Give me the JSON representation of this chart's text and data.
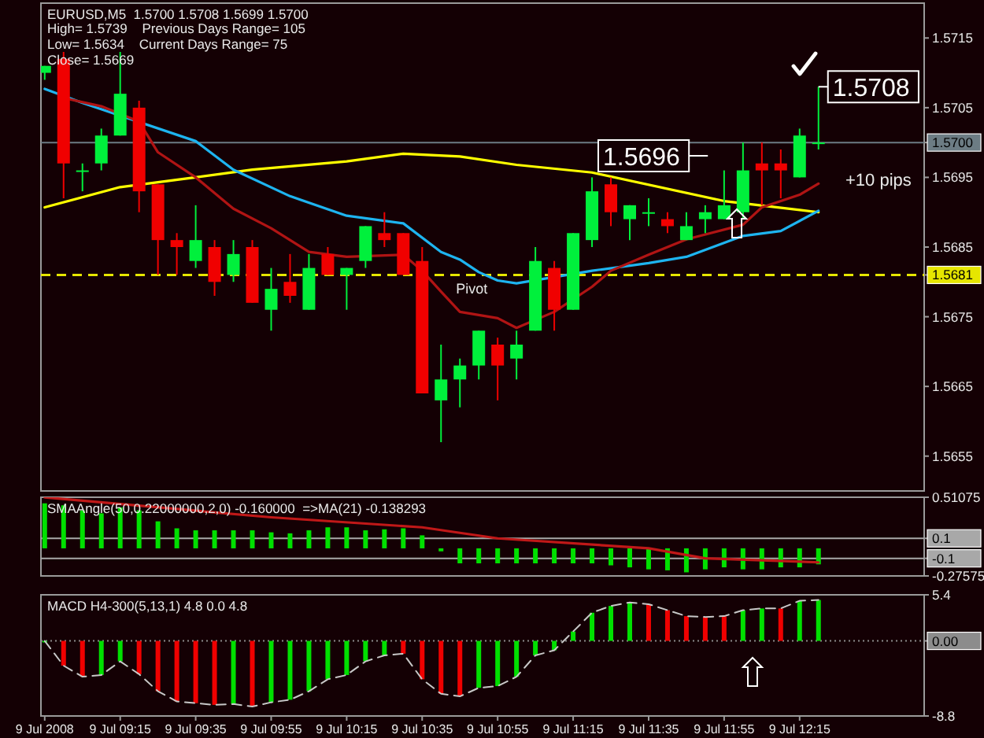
{
  "chart_data": [
    {
      "type": "candlestick",
      "title": "EURUSD,M5  1.5700 1.5708 1.5699 1.5700",
      "annotations": [
        "High= 1.5739    Previous Days Range= 105",
        "Low= 1.5634    Current Days Range= 75",
        "Close= 1.5669",
        "+10 pips",
        "1.5696",
        {
          "text": "1.5708",
          "x": "2008-07-09T12:20",
          "y": 1.5708
        }
      ],
      "x": [
        "2008-07-09T08:55",
        "2008-07-09T09:00",
        "2008-07-09T09:05",
        "2008-07-09T09:10",
        "2008-07-09T09:15",
        "2008-07-09T09:20",
        "2008-07-09T09:25",
        "2008-07-09T09:30",
        "2008-07-09T09:35",
        "2008-07-09T09:40",
        "2008-07-09T09:45",
        "2008-07-09T09:50",
        "2008-07-09T09:55",
        "2008-07-09T10:00",
        "2008-07-09T10:05",
        "2008-07-09T10:10",
        "2008-07-09T10:15",
        "2008-07-09T10:20",
        "2008-07-09T10:25",
        "2008-07-09T10:30",
        "2008-07-09T10:35",
        "2008-07-09T10:40",
        "2008-07-09T10:45",
        "2008-07-09T10:50",
        "2008-07-09T10:55",
        "2008-07-09T11:00",
        "2008-07-09T11:05",
        "2008-07-09T11:10",
        "2008-07-09T11:15",
        "2008-07-09T11:20",
        "2008-07-09T11:25",
        "2008-07-09T11:30",
        "2008-07-09T11:35",
        "2008-07-09T11:40",
        "2008-07-09T11:45",
        "2008-07-09T11:50",
        "2008-07-09T11:55",
        "2008-07-09T12:00",
        "2008-07-09T12:05",
        "2008-07-09T12:10",
        "2008-07-09T12:15",
        "2008-07-09T12:20"
      ],
      "xlim": [
        "2008-07-09T08:54",
        "2008-07-09T12:48"
      ],
      "ylim": [
        1.565,
        1.572
      ],
      "yticks": [
        1.5715,
        1.5705,
        1.5695,
        1.5685,
        1.5675,
        1.5665,
        1.5655,
        {
          "value": 1.57,
          "label": "1.5700"
        },
        {
          "value": 1.5681,
          "label": "1.5681"
        }
      ],
      "tick_labels": "y",
      "ohlc": [
        [
          1.571,
          1.5711,
          1.5709,
          1.5711
        ],
        [
          1.5712,
          1.5713,
          1.5692,
          1.5697
        ],
        [
          1.5696,
          1.5697,
          1.5693,
          1.5696
        ],
        [
          1.5697,
          1.5702,
          1.5696,
          1.5701
        ],
        [
          1.5701,
          1.5713,
          1.5701,
          1.5707
        ],
        [
          1.5705,
          1.5706,
          1.569,
          1.5693
        ],
        [
          1.5694,
          1.5694,
          1.5681,
          1.5686
        ],
        [
          1.5686,
          1.5687,
          1.5681,
          1.5685
        ],
        [
          1.5683,
          1.5691,
          1.5682,
          1.5686
        ],
        [
          1.5685,
          1.5686,
          1.5678,
          1.568
        ],
        [
          1.5681,
          1.5686,
          1.568,
          1.5684
        ],
        [
          1.5685,
          1.5686,
          1.5677,
          1.5677
        ],
        [
          1.5676,
          1.5682,
          1.5673,
          1.5679
        ],
        [
          1.568,
          1.5684,
          1.5677,
          1.5678
        ],
        [
          1.5676,
          1.5684,
          1.5676,
          1.5682
        ],
        [
          1.5684,
          1.5685,
          1.5681,
          1.5681
        ],
        [
          1.5681,
          1.5682,
          1.5676,
          1.5682
        ],
        [
          1.5683,
          1.5688,
          1.5682,
          1.5688
        ],
        [
          1.5687,
          1.569,
          1.5685,
          1.5686
        ],
        [
          1.5687,
          1.5687,
          1.5681,
          1.5681
        ],
        [
          1.5683,
          1.5685,
          1.5664,
          1.5664
        ],
        [
          1.5663,
          1.5671,
          1.5657,
          1.5666
        ],
        [
          1.5666,
          1.5669,
          1.5662,
          1.5668
        ],
        [
          1.5668,
          1.5673,
          1.5666,
          1.5673
        ],
        [
          1.5671,
          1.5672,
          1.5663,
          1.5668
        ],
        [
          1.5669,
          1.5673,
          1.5666,
          1.5671
        ],
        [
          1.5673,
          1.5685,
          1.5673,
          1.5683
        ],
        [
          1.5682,
          1.5683,
          1.5673,
          1.5676
        ],
        [
          1.5676,
          1.5687,
          1.5676,
          1.5687
        ],
        [
          1.5686,
          1.5695,
          1.5685,
          1.5693
        ],
        [
          1.5694,
          1.5695,
          1.5688,
          1.569
        ],
        [
          1.5689,
          1.5691,
          1.5686,
          1.5691
        ],
        [
          1.569,
          1.5692,
          1.5688,
          1.569
        ],
        [
          1.5689,
          1.569,
          1.5687,
          1.5688
        ],
        [
          1.5686,
          1.569,
          1.5686,
          1.5688
        ],
        [
          1.5689,
          1.5691,
          1.5687,
          1.569
        ],
        [
          1.5689,
          1.5696,
          1.5689,
          1.5691
        ],
        [
          1.569,
          1.57,
          1.5689,
          1.5696
        ],
        [
          1.5697,
          1.57,
          1.5691,
          1.5696
        ],
        [
          1.5697,
          1.5699,
          1.5692,
          1.5696
        ],
        [
          1.5695,
          1.5702,
          1.5695,
          1.5701
        ],
        [
          1.57,
          1.5708,
          1.5699,
          1.57
        ]
      ],
      "colors": [
        "#00f03c",
        "#f00000",
        "#00f03c",
        "#00f03c",
        "#00f03c",
        "#f00000",
        "#f00000",
        "#f00000",
        "#00f03c",
        "#f00000",
        "#00f03c",
        "#f00000",
        "#00f03c",
        "#f00000",
        "#00f03c",
        "#f00000",
        "#00f03c",
        "#00f03c",
        "#f00000",
        "#f00000",
        "#f00000",
        "#00f03c",
        "#00f03c",
        "#00f03c",
        "#f00000",
        "#00f03c",
        "#00f03c",
        "#f00000",
        "#00f03c",
        "#00f03c",
        "#f00000",
        "#00f03c",
        "#00f03c",
        "#f00000",
        "#00f03c",
        "#00f03c",
        "#00f03c",
        "#00f03c",
        "#f00000",
        "#f00000",
        "#00f03c",
        "#00f03c"
      ],
      "series": [
        {
          "type": "line",
          "color": "#ffff00",
          "x": [
            "2008-07-09T08:55",
            "2008-07-09T09:15",
            "2008-07-09T09:35",
            "2008-07-09T09:50",
            "2008-07-09T10:15",
            "2008-07-09T10:30",
            "2008-07-09T10:45",
            "2008-07-09T11:00",
            "2008-07-09T11:20",
            "2008-07-09T11:55",
            "2008-07-09T12:20"
          ],
          "values": [
            1.56907,
            1.56936,
            1.5695,
            1.56961,
            1.56973,
            1.56984,
            1.5698,
            1.56968,
            1.56957,
            1.56916,
            1.569
          ]
        },
        {
          "type": "line",
          "color": "#1eb4f0",
          "x": [
            "2008-07-09T08:55",
            "2008-07-09T09:05",
            "2008-07-09T09:35",
            "2008-07-09T09:45",
            "2008-07-09T10:00",
            "2008-07-09T10:15",
            "2008-07-09T10:30",
            "2008-07-09T10:40",
            "2008-07-09T10:45",
            "2008-07-09T10:50",
            "2008-07-09T10:55",
            "2008-07-09T11:00",
            "2008-07-09T11:20",
            "2008-07-09T11:35",
            "2008-07-09T11:45",
            "2008-07-09T12:00",
            "2008-07-09T12:10",
            "2008-07-09T12:20"
          ],
          "values": [
            1.57077,
            1.57057,
            1.57002,
            1.56961,
            1.56923,
            1.56895,
            1.56884,
            1.56843,
            1.56832,
            1.56814,
            1.56802,
            1.56798,
            1.56816,
            1.56827,
            1.56836,
            1.56866,
            1.56873,
            1.56902
          ]
        },
        {
          "type": "line",
          "color": "#b01414",
          "x": [
            "2008-07-09T09:00",
            "2008-07-09T09:10",
            "2008-07-09T09:20",
            "2008-07-09T09:25",
            "2008-07-09T09:35",
            "2008-07-09T09:45",
            "2008-07-09T09:55",
            "2008-07-09T10:05",
            "2008-07-09T10:15",
            "2008-07-09T10:30",
            "2008-07-09T10:35",
            "2008-07-09T10:40",
            "2008-07-09T10:45",
            "2008-07-09T10:55",
            "2008-07-09T11:00",
            "2008-07-09T11:10",
            "2008-07-09T11:20",
            "2008-07-09T11:25",
            "2008-07-09T11:35",
            "2008-07-09T11:45",
            "2008-07-09T12:00",
            "2008-07-09T12:05",
            "2008-07-09T12:15",
            "2008-07-09T12:20"
          ],
          "values": [
            1.57064,
            1.57052,
            1.5703,
            1.56986,
            1.5695,
            1.56905,
            1.56877,
            1.56843,
            1.56836,
            1.56839,
            1.56816,
            1.56786,
            1.56757,
            1.56748,
            1.56734,
            1.56757,
            1.56793,
            1.56816,
            1.56839,
            1.56861,
            1.56882,
            1.56907,
            1.56925,
            1.56941
          ]
        }
      ],
      "ref_lines": [
        {
          "axis": "y",
          "value": 1.5681,
          "label": "Pivot",
          "color": "#e6e600",
          "line_style": "dashed"
        },
        {
          "axis": "y",
          "value": 1.57,
          "color": "#6c7c84",
          "line_style": "solid"
        }
      ]
    },
    {
      "type": "bar",
      "title": "SMAAngle(50,0.22000000,2,0) -0.160000  =>MA(21) -0.138293",
      "x": [
        "2008-07-09T08:55",
        "2008-07-09T09:00",
        "2008-07-09T09:05",
        "2008-07-09T09:10",
        "2008-07-09T09:15",
        "2008-07-09T09:20",
        "2008-07-09T09:25",
        "2008-07-09T09:30",
        "2008-07-09T09:35",
        "2008-07-09T09:40",
        "2008-07-09T09:45",
        "2008-07-09T09:50",
        "2008-07-09T09:55",
        "2008-07-09T10:00",
        "2008-07-09T10:05",
        "2008-07-09T10:10",
        "2008-07-09T10:15",
        "2008-07-09T10:20",
        "2008-07-09T10:25",
        "2008-07-09T10:30",
        "2008-07-09T10:35",
        "2008-07-09T10:40",
        "2008-07-09T10:45",
        "2008-07-09T10:50",
        "2008-07-09T10:55",
        "2008-07-09T11:00",
        "2008-07-09T11:05",
        "2008-07-09T11:10",
        "2008-07-09T11:15",
        "2008-07-09T11:20",
        "2008-07-09T11:25",
        "2008-07-09T11:30",
        "2008-07-09T11:35",
        "2008-07-09T11:40",
        "2008-07-09T11:45",
        "2008-07-09T11:50",
        "2008-07-09T11:55",
        "2008-07-09T12:00",
        "2008-07-09T12:05",
        "2008-07-09T12:10",
        "2008-07-09T12:15",
        "2008-07-09T12:20"
      ],
      "xlim": [
        "2008-07-09T08:54",
        "2008-07-09T12:48"
      ],
      "ylim": [
        -0.27575,
        0.51075
      ],
      "yticks": [
        0.51075,
        0.1,
        -0.1,
        -0.27575
      ],
      "tick_labels": "y",
      "series": [
        {
          "type": "bar",
          "color": "#00e000",
          "values": [
            0.45,
            0.43,
            0.38,
            0.35,
            0.41,
            0.38,
            0.27,
            0.2,
            0.18,
            0.18,
            0.18,
            0.18,
            0.16,
            0.15,
            0.18,
            0.21,
            0.21,
            0.18,
            0.19,
            0.2,
            0.13,
            -0.03,
            -0.15,
            -0.15,
            -0.15,
            -0.15,
            -0.15,
            -0.15,
            -0.15,
            -0.15,
            -0.17,
            -0.19,
            -0.21,
            -0.22,
            -0.24,
            -0.21,
            -0.19,
            -0.21,
            -0.21,
            -0.19,
            -0.19,
            -0.16
          ]
        },
        {
          "type": "line",
          "color": "#c01818",
          "x": [
            "2008-07-09T08:55",
            "2008-07-09T09:55",
            "2008-07-09T10:35",
            "2008-07-09T10:55",
            "2008-07-09T11:35",
            "2008-07-09T11:50",
            "2008-07-09T12:20"
          ],
          "values": [
            0.51,
            0.31,
            0.21,
            0.1,
            0.0,
            -0.1,
            -0.14
          ]
        }
      ],
      "ref_lines": [
        {
          "axis": "y",
          "value": 0.1,
          "color": "#a8a8a8",
          "line_style": "solid"
        },
        {
          "axis": "y",
          "value": -0.1,
          "color": "#a8a8a8",
          "line_style": "solid"
        }
      ]
    },
    {
      "type": "bar",
      "title": "MACD H4-300(5,13,1) 4.8 0.0 4.8",
      "x": [
        "2008-07-09T08:55",
        "2008-07-09T09:00",
        "2008-07-09T09:05",
        "2008-07-09T09:10",
        "2008-07-09T09:15",
        "2008-07-09T09:20",
        "2008-07-09T09:25",
        "2008-07-09T09:30",
        "2008-07-09T09:35",
        "2008-07-09T09:40",
        "2008-07-09T09:45",
        "2008-07-09T09:50",
        "2008-07-09T09:55",
        "2008-07-09T10:00",
        "2008-07-09T10:05",
        "2008-07-09T10:10",
        "2008-07-09T10:15",
        "2008-07-09T10:20",
        "2008-07-09T10:25",
        "2008-07-09T10:30",
        "2008-07-09T10:35",
        "2008-07-09T10:40",
        "2008-07-09T10:45",
        "2008-07-09T10:50",
        "2008-07-09T10:55",
        "2008-07-09T11:00",
        "2008-07-09T11:05",
        "2008-07-09T11:10",
        "2008-07-09T11:15",
        "2008-07-09T11:20",
        "2008-07-09T11:25",
        "2008-07-09T11:30",
        "2008-07-09T11:35",
        "2008-07-09T11:40",
        "2008-07-09T11:45",
        "2008-07-09T11:50",
        "2008-07-09T11:55",
        "2008-07-09T12:00",
        "2008-07-09T12:05",
        "2008-07-09T12:10",
        "2008-07-09T12:15",
        "2008-07-09T12:20"
      ],
      "xlim": [
        "2008-07-09T08:54",
        "2008-07-09T12:48"
      ],
      "xticks": [
        {
          "value": "2008-07-09T08:55",
          "label": "9 Jul 2008"
        },
        {
          "value": "2008-07-09T09:15",
          "label": "9 Jul 09:15"
        },
        {
          "value": "2008-07-09T09:35",
          "label": "9 Jul 09:35"
        },
        {
          "value": "2008-07-09T09:55",
          "label": "9 Jul 09:55"
        },
        {
          "value": "2008-07-09T10:15",
          "label": "9 Jul 10:15"
        },
        {
          "value": "2008-07-09T10:35",
          "label": "9 Jul 10:35"
        },
        {
          "value": "2008-07-09T10:55",
          "label": "9 Jul 10:55"
        },
        {
          "value": "2008-07-09T11:15",
          "label": "9 Jul 11:15"
        },
        {
          "value": "2008-07-09T11:35",
          "label": "9 Jul 11:35"
        },
        {
          "value": "2008-07-09T11:55",
          "label": "9 Jul 11:55"
        },
        {
          "value": "2008-07-09T12:15",
          "label": "9 Jul 12:15"
        }
      ],
      "ylim": [
        -8.8,
        5.4
      ],
      "yticks": [
        5.4,
        {
          "value": 0,
          "label": "0.00"
        },
        -8.8
      ],
      "series": [
        {
          "type": "bar",
          "values": [
            0,
            -2.9,
            -4.2,
            -4.0,
            -2.4,
            -3.9,
            -5.9,
            -7.1,
            -7.3,
            -7.5,
            -7.4,
            -7.7,
            -7.2,
            -6.9,
            -5.9,
            -4.5,
            -4.0,
            -2.4,
            -1.7,
            -1.5,
            -4.5,
            -6.2,
            -6.5,
            -5.5,
            -5.3,
            -4.2,
            -1.7,
            -1.1,
            1.1,
            3.3,
            4.1,
            4.5,
            4.3,
            3.6,
            2.9,
            2.8,
            2.9,
            3.6,
            3.8,
            3.8,
            4.7,
            4.8
          ],
          "colors": [
            "#00e000",
            "#f00000",
            "#f00000",
            "#00e000",
            "#00e000",
            "#f00000",
            "#f00000",
            "#f00000",
            "#f00000",
            "#f00000",
            "#00e000",
            "#f00000",
            "#00e000",
            "#00e000",
            "#00e000",
            "#00e000",
            "#00e000",
            "#00e000",
            "#00e000",
            "#f00000",
            "#f00000",
            "#f00000",
            "#f00000",
            "#00e000",
            "#00e000",
            "#00e000",
            "#00e000",
            "#00e000",
            "#00e000",
            "#00e000",
            "#00e000",
            "#00e000",
            "#f00000",
            "#f00000",
            "#f00000",
            "#f00000",
            "#f00000",
            "#00e000",
            "#00e000",
            "#f00000",
            "#00e000",
            "#00e000"
          ]
        },
        {
          "type": "line",
          "color": "#c8c8c8",
          "line_style": "dashed",
          "values": [
            0,
            -2.9,
            -4.2,
            -4.0,
            -2.4,
            -3.9,
            -5.9,
            -7.1,
            -7.3,
            -7.5,
            -7.4,
            -7.7,
            -7.2,
            -6.9,
            -5.9,
            -4.5,
            -4.0,
            -2.4,
            -1.7,
            -1.5,
            -4.5,
            -6.2,
            -6.5,
            -5.5,
            -5.3,
            -4.2,
            -1.7,
            -1.1,
            1.1,
            3.3,
            4.1,
            4.5,
            4.3,
            3.6,
            2.9,
            2.8,
            2.9,
            3.6,
            3.8,
            3.8,
            4.7,
            4.8
          ]
        }
      ],
      "ref_lines": [
        {
          "axis": "y",
          "value": 0,
          "color": "#8c8c8c",
          "line_style": "dotted"
        }
      ]
    }
  ]
}
